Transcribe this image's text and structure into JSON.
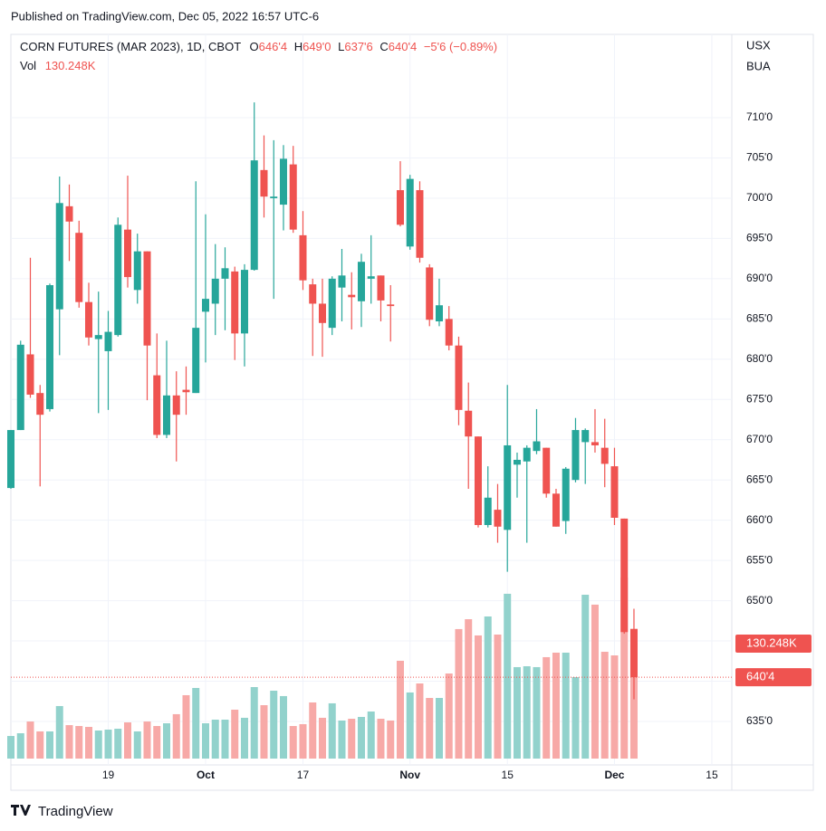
{
  "header": {
    "published": "Published on TradingView.com, Dec 05, 2022 16:57 UTC-6"
  },
  "footer": {
    "brand": "TradingView"
  },
  "chart_data": {
    "type": "candlestick",
    "symbol": "CORN FUTURES (MAR 2023), 1D, CBOT",
    "legend_keys": [
      "O",
      "H",
      "L",
      "C"
    ],
    "ohlc_labels": [
      "646'4",
      "649'0",
      "637'6",
      "640'4"
    ],
    "change_label": "−5'6 (−0.89%)",
    "vol_title": "Vol",
    "volume_label": "130.248K",
    "currency": "USX",
    "unit": "BUA",
    "up_color": "#26a69a",
    "down_color": "#ef5350",
    "up_volume_color": "#92d2cc",
    "down_volume_color": "#f7a9a7",
    "grid": true,
    "xlim": [
      0,
      74.05
    ],
    "ylim": [
      629.6,
      720.35
    ],
    "yticks": [
      {
        "value": 635,
        "label": "635'0"
      },
      {
        "value": 640,
        "label": "640'0"
      },
      {
        "value": 645,
        "label": "645'0"
      },
      {
        "value": 650,
        "label": "650'0"
      },
      {
        "value": 655,
        "label": "655'0"
      },
      {
        "value": 660,
        "label": "660'0"
      },
      {
        "value": 665,
        "label": "665'0"
      },
      {
        "value": 670,
        "label": "670'0"
      },
      {
        "value": 675,
        "label": "675'0"
      },
      {
        "value": 680,
        "label": "680'0"
      },
      {
        "value": 685,
        "label": "685'0"
      },
      {
        "value": 690,
        "label": "690'0"
      },
      {
        "value": 695,
        "label": "695'0"
      },
      {
        "value": 700,
        "label": "700'0"
      },
      {
        "value": 705,
        "label": "705'0"
      },
      {
        "value": 710,
        "label": "710'0"
      }
    ],
    "xticks": [
      {
        "value": 10,
        "label": "19"
      },
      {
        "value": 20,
        "label": "Oct"
      },
      {
        "value": 30,
        "label": "17"
      },
      {
        "value": 41,
        "label": "Nov"
      },
      {
        "value": 51,
        "label": "15"
      },
      {
        "value": 62,
        "label": "Dec"
      },
      {
        "value": 72,
        "label": "15"
      }
    ],
    "open": [
      664.0,
      671.2,
      680.6,
      675.8,
      673.8,
      686.2,
      699.0,
      695.7,
      687.1,
      682.5,
      681.0,
      683.0,
      696.1,
      688.6,
      693.4,
      678.0,
      670.6,
      675.5,
      676.2,
      675.8,
      685.9,
      686.9,
      690.0,
      690.9,
      683.2,
      691.1,
      703.5,
      700.0,
      699.2,
      704.2,
      695.4,
      689.3,
      686.9,
      683.9,
      688.9,
      688.0,
      687.2,
      690.0,
      690.4,
      686.8,
      701.0,
      694.0,
      701.0,
      691.4,
      684.7,
      685.0,
      681.7,
      673.6,
      670.4,
      659.4,
      661.3,
      658.8,
      666.9,
      667.3,
      668.6,
      669.0,
      663.3,
      659.9,
      665.0,
      669.7,
      669.7,
      669.0,
      666.7,
      660.2,
      646.5
    ],
    "high": [
      671.2,
      682.3,
      692.6,
      676.8,
      689.4,
      702.7,
      701.7,
      697.2,
      689.5,
      688.4,
      686.0,
      697.6,
      702.8,
      695.6,
      693.4,
      683.2,
      682.3,
      678.5,
      679.1,
      702.1,
      698.0,
      694.3,
      693.9,
      691.5,
      691.8,
      711.9,
      707.8,
      707.2,
      706.6,
      706.5,
      698.4,
      690.0,
      690.0,
      690.3,
      693.7,
      690.8,
      693.1,
      695.4,
      690.4,
      689.2,
      704.6,
      702.9,
      702.1,
      691.8,
      690.0,
      686.6,
      682.8,
      677.1,
      670.4,
      666.7,
      664.5,
      676.8,
      668.4,
      669.3,
      673.8,
      669.0,
      663.9,
      666.6,
      672.7,
      671.4,
      673.8,
      672.6,
      669.0,
      660.2,
      649.0
    ],
    "low": [
      663.9,
      671.2,
      675.2,
      664.2,
      673.5,
      680.5,
      692.2,
      686.4,
      681.7,
      673.3,
      673.7,
      682.8,
      688.9,
      686.9,
      674.9,
      670.2,
      670.2,
      667.3,
      673.1,
      675.8,
      679.6,
      683.0,
      683.6,
      679.9,
      679.1,
      691.0,
      697.6,
      687.5,
      696.0,
      695.7,
      688.6,
      680.4,
      680.3,
      683.0,
      684.7,
      683.7,
      684.0,
      686.9,
      684.7,
      682.2,
      696.5,
      693.6,
      692.0,
      684.1,
      684.1,
      681.1,
      671.8,
      663.9,
      659.1,
      659.1,
      657.2,
      653.6,
      662.8,
      657.2,
      668.2,
      662.8,
      659.2,
      658.3,
      664.7,
      664.5,
      668.4,
      664.1,
      659.4,
      645.9,
      637.75
    ],
    "close": [
      671.2,
      681.8,
      675.6,
      673.1,
      689.2,
      699.4,
      697.1,
      687.1,
      682.7,
      683.0,
      683.4,
      696.7,
      690.2,
      693.4,
      681.7,
      670.6,
      675.5,
      673.1,
      675.9,
      683.9,
      687.5,
      690.0,
      691.3,
      683.2,
      691.1,
      704.7,
      700.2,
      700.2,
      704.9,
      696.1,
      689.8,
      686.9,
      684.5,
      690.0,
      690.4,
      687.7,
      692.1,
      690.3,
      687.3,
      686.6,
      696.7,
      702.4,
      692.6,
      684.9,
      686.7,
      681.7,
      673.7,
      670.4,
      659.4,
      662.8,
      659.2,
      669.3,
      667.5,
      669.0,
      669.8,
      663.3,
      659.2,
      666.4,
      671.2,
      671.2,
      669.3,
      667.0,
      660.3,
      646.1,
      640.5
    ],
    "volume": [
      25.6,
      28.7,
      42.0,
      30.8,
      30.8,
      59.5,
      37.9,
      36.9,
      35.9,
      31.8,
      32.8,
      33.8,
      41.0,
      30.8,
      42.0,
      36.9,
      40.0,
      50.3,
      71.8,
      80.0,
      40.0,
      44.1,
      44.1,
      55.4,
      46.2,
      81.0,
      60.5,
      76.9,
      70.8,
      36.9,
      39.0,
      63.6,
      46.2,
      62.6,
      43.1,
      45.1,
      47.2,
      53.3,
      45.1,
      43.1,
      110.8,
      74.9,
      85.1,
      68.7,
      68.7,
      96.4,
      146.7,
      157.9,
      139.5,
      161.0,
      140.5,
      186.7,
      103.6,
      104.6,
      103.6,
      114.9,
      120.0,
      120.0,
      92.3,
      185.6,
      174.4,
      121.0,
      116.9,
      205.1,
      130.248
    ]
  }
}
